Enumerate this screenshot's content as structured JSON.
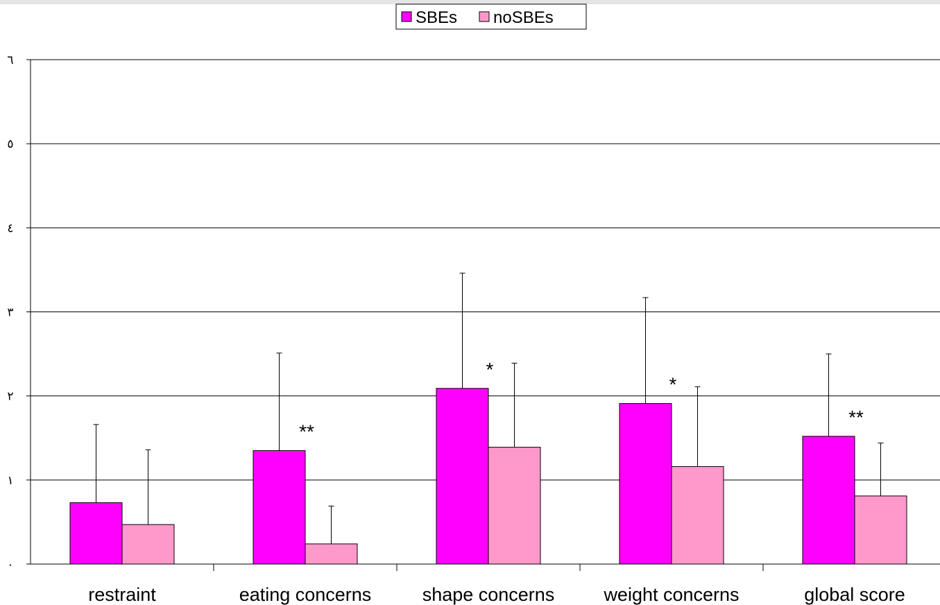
{
  "chart_data": {
    "type": "bar",
    "categories": [
      "restraint",
      "eating concerns",
      "shape concerns",
      "weight concerns",
      "global score"
    ],
    "series": [
      {
        "name": "SBEs",
        "color": "#ff00ff",
        "values": [
          0.73,
          1.35,
          2.09,
          1.91,
          1.52
        ],
        "error_upper": [
          1.66,
          2.51,
          3.46,
          3.17,
          2.5
        ]
      },
      {
        "name": "noSBEs",
        "color": "#ff99cc",
        "values": [
          0.47,
          0.24,
          1.39,
          1.16,
          0.81
        ],
        "error_upper": [
          1.36,
          0.69,
          2.39,
          2.11,
          1.44
        ]
      }
    ],
    "significance": [
      "",
      "**",
      "*",
      "*",
      "**"
    ],
    "ylim": [
      0,
      6
    ],
    "yticks": [
      0,
      1,
      2,
      3,
      4,
      5,
      6
    ],
    "ytick_labels": [
      "٠",
      "١",
      "٢",
      "٣",
      "٤",
      "٥",
      "٦"
    ],
    "grid": true,
    "legend_position": "top-center",
    "title": "",
    "xlabel": "",
    "ylabel": ""
  }
}
